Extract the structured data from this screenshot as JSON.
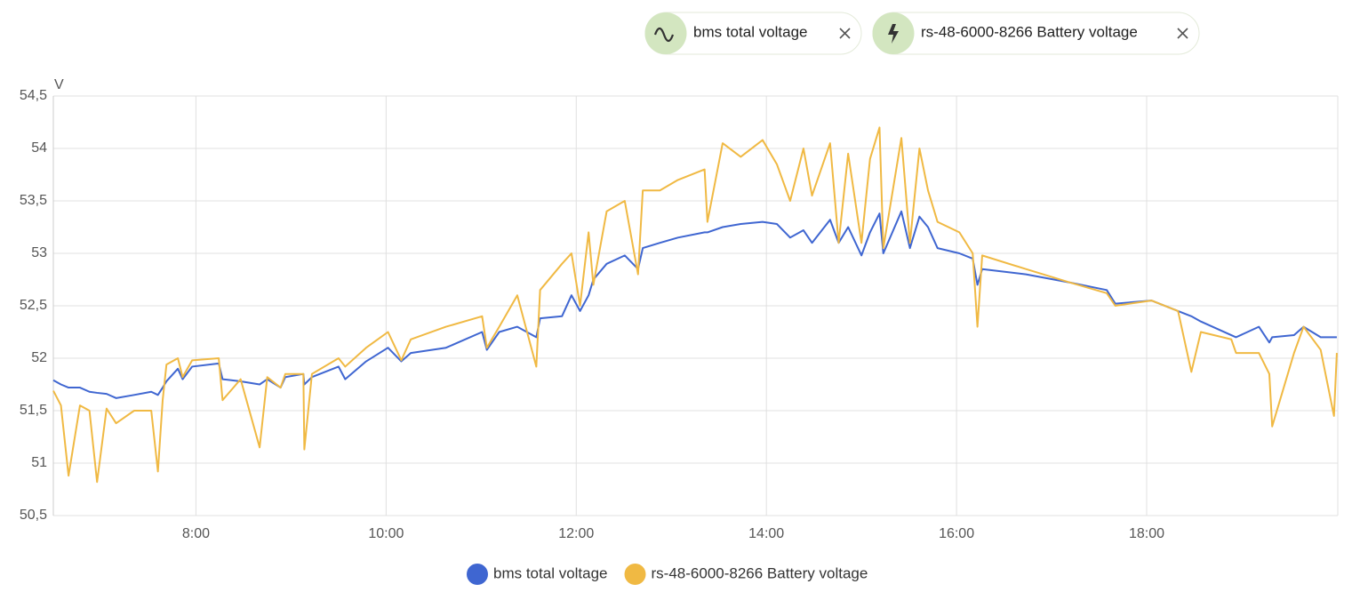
{
  "filters": [
    {
      "label": "bms total voltage"
    },
    {
      "label": "rs-48-6000-8266 Battery voltage"
    }
  ],
  "chart_data": {
    "type": "line",
    "y_unit": "V",
    "grid": true,
    "xlim": [
      6.5,
      20.01
    ],
    "ylim": [
      50.5,
      54.5
    ],
    "xticks": [
      {
        "value": 8,
        "label": "8:00"
      },
      {
        "value": 10,
        "label": "10:00"
      },
      {
        "value": 12,
        "label": "12:00"
      },
      {
        "value": 14,
        "label": "14:00"
      },
      {
        "value": 16,
        "label": "16:00"
      },
      {
        "value": 18,
        "label": "18:00"
      }
    ],
    "yticks": [
      {
        "value": 50.5,
        "label": "50,5"
      },
      51,
      {
        "value": 51.5,
        "label": "51,5"
      },
      52,
      {
        "value": 52.5,
        "label": "52,5"
      },
      53,
      {
        "value": 53.5,
        "label": "53,5"
      },
      54,
      {
        "value": 54.5,
        "label": "54,5"
      }
    ],
    "x": [
      6.5,
      6.58,
      6.66,
      6.78,
      6.88,
      6.96,
      7.06,
      7.16,
      7.35,
      7.53,
      7.6,
      7.65,
      7.69,
      7.81,
      7.86,
      7.96,
      8.24,
      8.28,
      8.47,
      8.67,
      8.75,
      8.89,
      8.94,
      9.13,
      9.14,
      9.22,
      9.5,
      9.57,
      9.79,
      10.02,
      10.16,
      10.26,
      10.63,
      11.01,
      11.06,
      11.19,
      11.38,
      11.58,
      11.62,
      11.85,
      11.95,
      12.04,
      12.13,
      12.18,
      12.32,
      12.51,
      12.65,
      12.7,
      12.88,
      13.07,
      13.35,
      13.38,
      13.54,
      13.73,
      13.96,
      14.11,
      14.25,
      14.39,
      14.48,
      14.67,
      14.76,
      14.86,
      15.0,
      15.09,
      15.19,
      15.23,
      15.42,
      15.51,
      15.61,
      15.7,
      15.8,
      16.03,
      16.17,
      16.22,
      16.27,
      16.73,
      17.2,
      17.58,
      17.67,
      18.05,
      18.33,
      18.47,
      18.57,
      18.89,
      18.94,
      19.18,
      19.29,
      19.32,
      19.55,
      19.65,
      19.83,
      19.97,
      20.0
    ],
    "series": [
      {
        "name": "bms total voltage",
        "color": "#3f66d1",
        "values": [
          51.79,
          51.75,
          51.72,
          51.72,
          51.68,
          51.67,
          51.66,
          51.62,
          51.65,
          51.68,
          51.65,
          51.72,
          51.78,
          51.9,
          51.8,
          51.92,
          51.95,
          51.8,
          51.78,
          51.75,
          51.8,
          51.72,
          51.82,
          51.85,
          51.75,
          51.82,
          51.92,
          51.8,
          51.97,
          52.1,
          51.97,
          52.05,
          52.1,
          52.25,
          52.08,
          52.25,
          52.3,
          52.2,
          52.38,
          52.4,
          52.6,
          52.45,
          52.6,
          52.75,
          52.9,
          52.98,
          52.85,
          53.05,
          53.1,
          53.15,
          53.2,
          53.2,
          53.25,
          53.28,
          53.3,
          53.28,
          53.15,
          53.22,
          53.1,
          53.32,
          53.1,
          53.25,
          52.98,
          53.2,
          53.38,
          53.0,
          53.4,
          53.05,
          53.35,
          53.25,
          53.05,
          53.0,
          52.95,
          52.7,
          52.85,
          52.8,
          52.72,
          52.65,
          52.52,
          52.55,
          52.45,
          52.4,
          52.35,
          52.22,
          52.2,
          52.3,
          52.15,
          52.2,
          52.22,
          52.3,
          52.2,
          52.2,
          52.2
        ]
      },
      {
        "name": "rs-48-6000-8266 Battery voltage",
        "color": "#f0b943",
        "values": [
          51.69,
          51.55,
          50.88,
          51.55,
          51.5,
          50.82,
          51.52,
          51.38,
          51.5,
          51.5,
          50.92,
          51.6,
          51.94,
          52.0,
          51.82,
          51.98,
          52.0,
          51.6,
          51.8,
          51.15,
          51.82,
          51.72,
          51.85,
          51.85,
          51.13,
          51.85,
          52.0,
          51.92,
          52.1,
          52.25,
          51.98,
          52.18,
          52.3,
          52.4,
          52.1,
          52.3,
          52.6,
          51.92,
          52.65,
          52.9,
          53.0,
          52.5,
          53.2,
          52.7,
          53.4,
          53.5,
          52.8,
          53.6,
          53.6,
          53.7,
          53.8,
          53.3,
          54.05,
          53.92,
          54.08,
          53.85,
          53.5,
          54.0,
          53.55,
          54.05,
          53.1,
          53.95,
          53.1,
          53.9,
          54.2,
          53.05,
          54.1,
          53.1,
          54.0,
          53.6,
          53.3,
          53.2,
          53.0,
          52.3,
          52.98,
          52.85,
          52.72,
          52.62,
          52.5,
          52.55,
          52.45,
          51.87,
          52.25,
          52.18,
          52.05,
          52.05,
          51.85,
          51.35,
          52.05,
          52.3,
          52.08,
          51.45,
          52.05
        ]
      }
    ]
  }
}
